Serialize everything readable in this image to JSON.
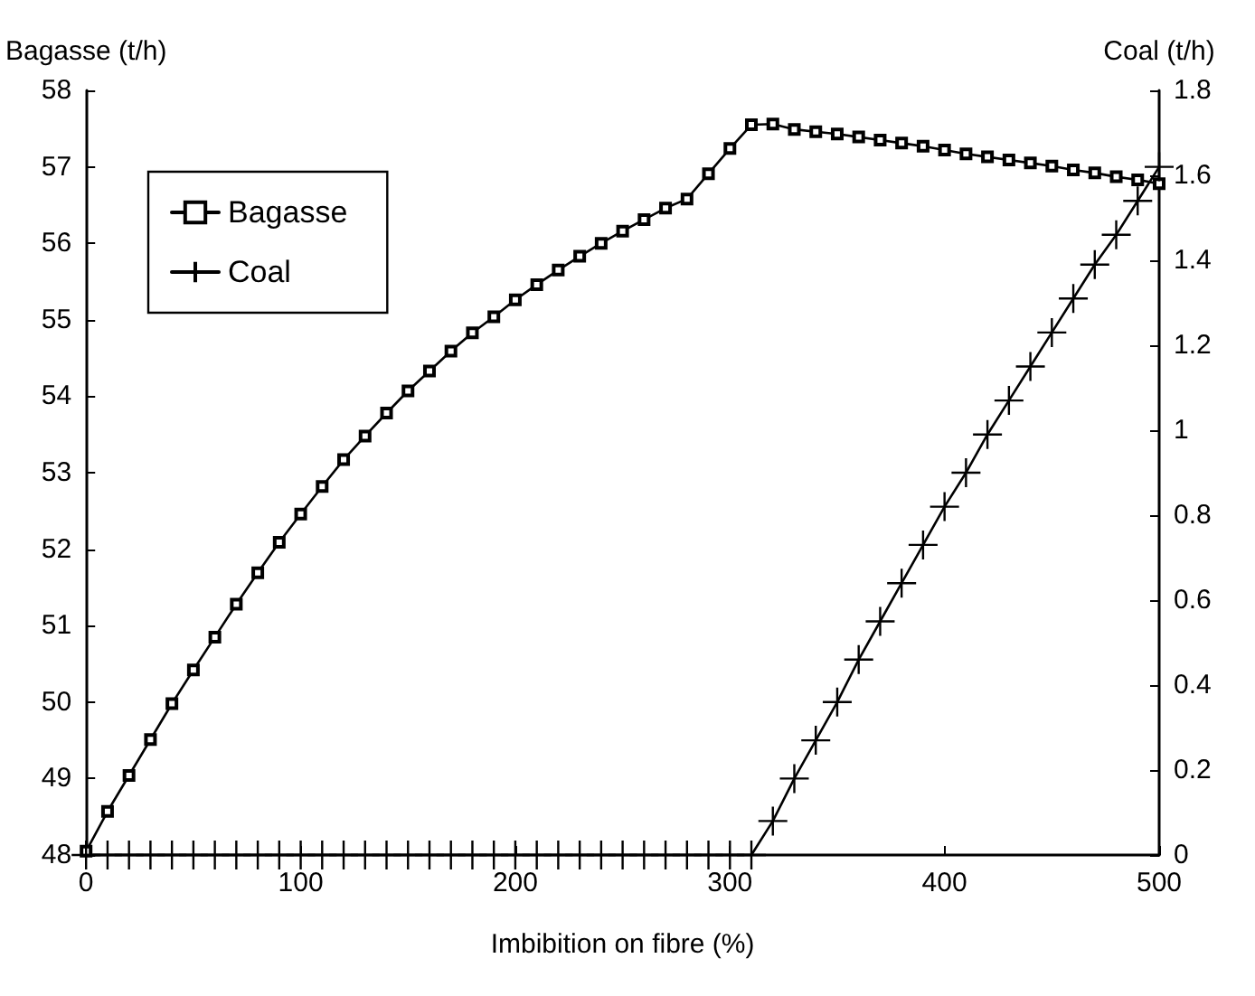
{
  "chart_data": {
    "type": "line",
    "xlabel": "Imbibition on fibre (%)",
    "ylabel": "Bagasse (t/h)",
    "y2label": "Coal (t/h)",
    "x": [
      0,
      10,
      20,
      30,
      40,
      50,
      60,
      70,
      80,
      90,
      100,
      110,
      120,
      130,
      140,
      150,
      160,
      170,
      180,
      190,
      200,
      210,
      220,
      230,
      240,
      250,
      260,
      270,
      280,
      290,
      300,
      310,
      320,
      330,
      340,
      350,
      360,
      370,
      380,
      390,
      400,
      410,
      420,
      430,
      440,
      450,
      460,
      470,
      480,
      490,
      500
    ],
    "series": [
      {
        "name": "Bagasse",
        "color": "#000000",
        "marker": "square",
        "values": [
          48.05,
          48.57,
          49.04,
          49.51,
          49.98,
          50.42,
          50.85,
          51.28,
          51.69,
          52.09,
          52.46,
          52.82,
          53.17,
          53.48,
          53.78,
          54.07,
          54.33,
          54.59,
          54.83,
          55.04,
          55.26,
          55.46,
          55.65,
          55.83,
          56.0,
          56.16,
          56.31,
          56.46,
          56.58,
          56.91,
          57.24,
          57.55,
          57.56,
          57.49,
          57.46,
          57.43,
          57.39,
          57.35,
          57.31,
          57.27,
          57.22,
          57.17,
          57.13,
          57.09,
          57.05,
          57.01,
          56.96,
          56.92,
          56.87,
          56.83,
          56.78
        ]
      },
      {
        "name": "Coal",
        "color": "#000000",
        "marker": "cross",
        "axis": "y2",
        "values": [
          0,
          0,
          0,
          0,
          0,
          0,
          0,
          0,
          0,
          0,
          0,
          0,
          0,
          0,
          0,
          0,
          0,
          0,
          0,
          0,
          0,
          0,
          0,
          0,
          0,
          0,
          0,
          0,
          0,
          0,
          0,
          0,
          0.08,
          0.18,
          0.27,
          0.36,
          0.46,
          0.55,
          0.64,
          0.73,
          0.82,
          0.9,
          0.99,
          1.07,
          1.15,
          1.23,
          1.31,
          1.39,
          1.46,
          1.54,
          1.62
        ]
      }
    ],
    "xlim": [
      0,
      500
    ],
    "xticks": [
      0,
      100,
      200,
      300,
      400,
      500
    ],
    "ylim": [
      48,
      58
    ],
    "yticks": [
      48,
      49,
      50,
      51,
      52,
      53,
      54,
      55,
      56,
      57,
      58
    ],
    "y2lim": [
      0,
      1.8
    ],
    "y2ticks": [
      0,
      0.2,
      0.4,
      0.6,
      0.8,
      1,
      1.2,
      1.4,
      1.6,
      1.8
    ],
    "grid": false,
    "legend": "top left",
    "line_style": "solid"
  }
}
